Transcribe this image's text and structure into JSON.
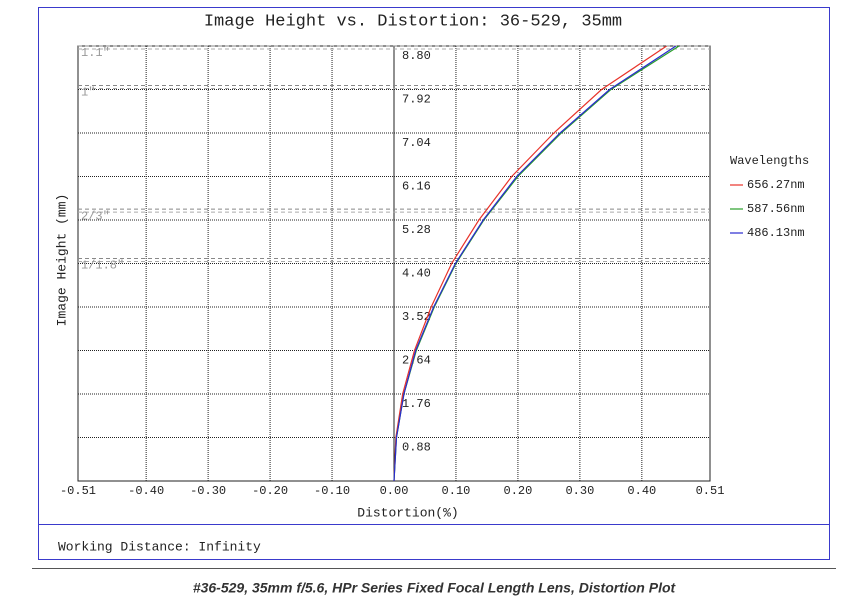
{
  "chart_data": {
    "type": "line",
    "title": "Image Height vs. Distortion: 36-529, 35mm",
    "x_label": "Distortion(%)",
    "y_label": "Image Height (mm)",
    "xlim": [
      -0.51,
      0.51
    ],
    "xticks": [
      -0.51,
      {
        "value": -0.4,
        "label": "-0.40"
      },
      {
        "value": -0.3,
        "label": "-0.30"
      },
      {
        "value": -0.2,
        "label": "-0.20"
      },
      {
        "value": -0.1,
        "label": "-0.10"
      },
      {
        "value": 0,
        "label": "0.00"
      },
      {
        "value": 0.1,
        "label": "0.10"
      },
      {
        "value": 0.2,
        "label": "0.20"
      },
      {
        "value": 0.3,
        "label": "0.30"
      },
      {
        "value": 0.4,
        "label": "0.40"
      },
      0.51
    ],
    "ylim": [
      0,
      8.8
    ],
    "yticks": [
      0.88,
      1.76,
      2.64,
      3.52,
      {
        "value": 4.4,
        "label": "4.40"
      },
      5.28,
      6.16,
      7.04,
      7.92,
      {
        "value": 8.8,
        "label": "8.80"
      }
    ],
    "grid": true,
    "legend_title": "Wavelengths",
    "y": [
      0,
      0.88,
      1.76,
      2.64,
      3.52,
      4.4,
      5.28,
      6.16,
      7.04,
      7.92,
      8.8
    ],
    "series": [
      {
        "name": "656.27nm",
        "color": "#e8332a",
        "values": [
          0,
          0.003,
          0.014,
          0.033,
          0.06,
          0.093,
          0.137,
          0.19,
          0.258,
          0.335,
          0.44
        ]
      },
      {
        "name": "587.56nm",
        "color": "#2aa02a",
        "values": [
          0,
          0.004,
          0.016,
          0.036,
          0.065,
          0.1,
          0.145,
          0.2,
          0.27,
          0.35,
          0.46
        ]
      },
      {
        "name": "486.13nm",
        "color": "#2a2ad0",
        "values": [
          0,
          0.004,
          0.016,
          0.035,
          0.064,
          0.099,
          0.144,
          0.198,
          0.268,
          0.348,
          0.455
        ]
      }
    ],
    "sensor_lines": [
      {
        "label": "1.1\"",
        "value": 8.8
      },
      {
        "label": "1\"",
        "value": 8.0
      },
      {
        "label": "2/3\"",
        "value": 5.5
      },
      {
        "label": "1/1.8\"",
        "value": 4.5
      }
    ],
    "footer": "Working Distance: Infinity"
  },
  "caption": "#36-529, 35mm f/5.6, HPr Series Fixed Focal Length Lens, Distortion Plot"
}
